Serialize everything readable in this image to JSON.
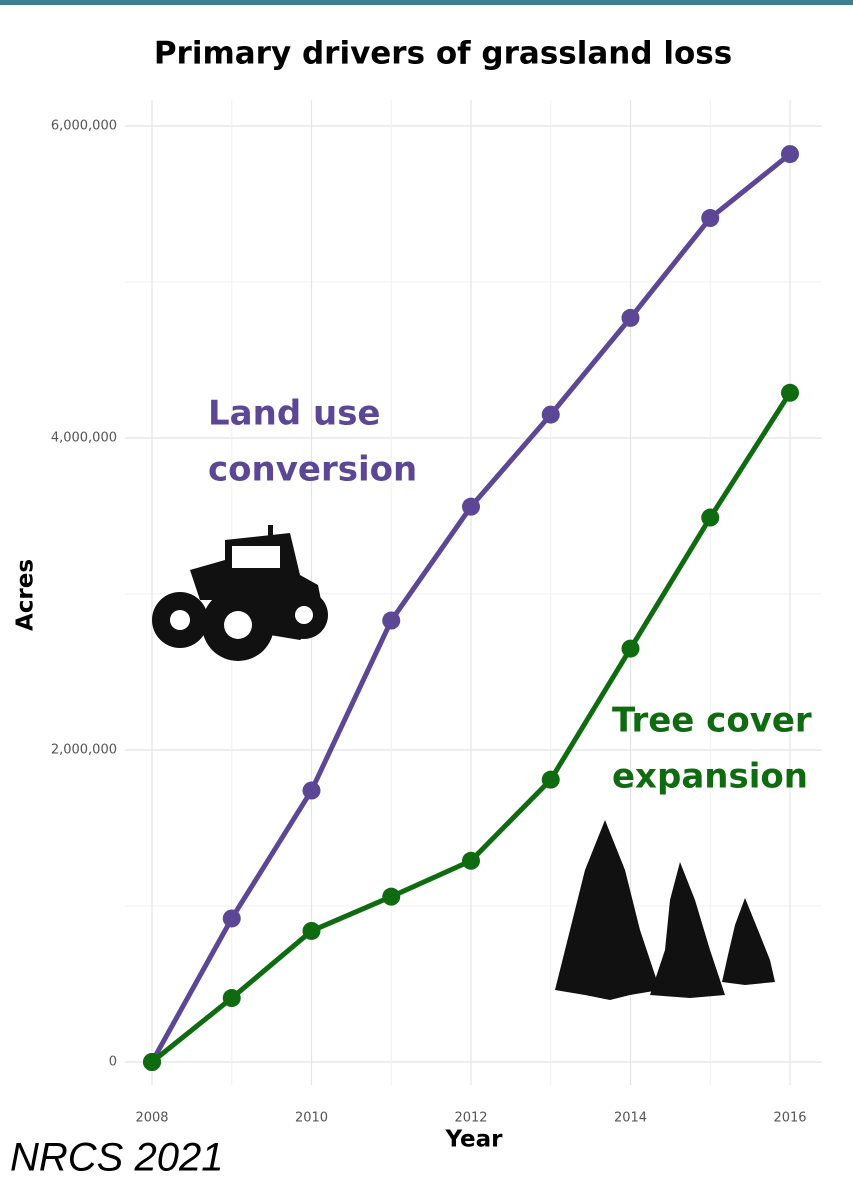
{
  "chart_data": {
    "type": "line",
    "title": "Primary drivers of grassland loss",
    "x_label": "Year",
    "y_label": "Acres",
    "source": "NRCS 2021",
    "x": [
      2008,
      2009,
      2010,
      2011,
      2012,
      2013,
      2014,
      2015,
      2016
    ],
    "series": [
      {
        "color": "#5c4696",
        "values": [
          0,
          920000,
          1740000,
          2830000,
          3560000,
          4150000,
          4770000,
          5410000,
          5820000
        ]
      },
      {
        "color": "#0f6b0f",
        "values": [
          0,
          410000,
          840000,
          1060000,
          1290000,
          1810000,
          2650000,
          3490000,
          4290000
        ]
      }
    ],
    "annotations": [
      {
        "lines": [
          "Land use",
          "conversion"
        ],
        "color": "#5c4696"
      },
      {
        "lines": [
          "Tree cover",
          "expansion"
        ],
        "color": "#0f6b0f"
      }
    ],
    "xlim": [
      2008,
      2016
    ],
    "xticks": [
      2008,
      2010,
      2012,
      2014,
      2016
    ],
    "ylim": [
      0,
      6000000
    ],
    "yticks": [
      0,
      {
        "value": 2000000,
        "label": "2,000,000"
      },
      {
        "value": 4000000,
        "label": "4,000,000"
      },
      {
        "value": 6000000,
        "label": "6,000,000"
      }
    ],
    "grid": true
  }
}
